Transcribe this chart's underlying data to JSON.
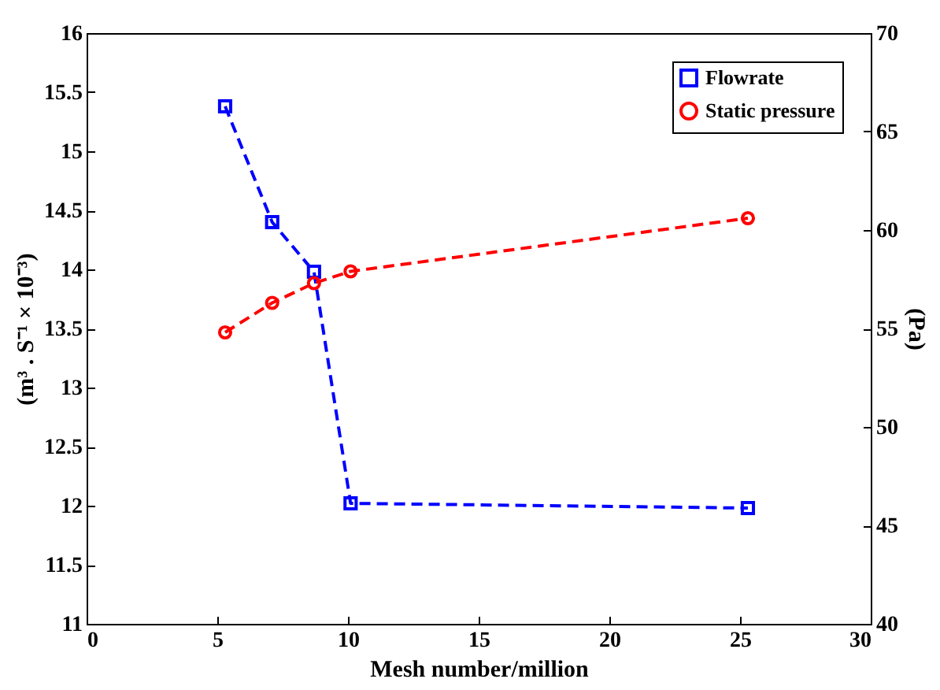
{
  "chart_data": {
    "type": "line",
    "xlabel": "Mesh number/million",
    "ylabel": "(m³ . S⁻¹ × 10⁻³)",
    "y2label": "(Pa)",
    "xlim": [
      0,
      30
    ],
    "xticks": [
      0,
      5,
      10,
      15,
      20,
      25,
      30
    ],
    "ylim": [
      11,
      16
    ],
    "yticks": [
      11,
      11.5,
      12,
      12.5,
      13,
      13.5,
      14,
      14.5,
      15,
      15.5,
      16
    ],
    "y2lim": [
      40,
      70
    ],
    "y2ticks": [
      40,
      45,
      50,
      55,
      60,
      65,
      70
    ],
    "x": [
      5.3,
      7.1,
      8.7,
      10.1,
      25.3
    ],
    "series": [
      {
        "name": "Flowrate",
        "color": "#0000ff",
        "marker": "square",
        "values": [
          15.38,
          14.4,
          13.98,
          12.02,
          11.98
        ]
      },
      {
        "name": "Static pressure",
        "color": "#ff0000",
        "marker": "circle",
        "axis": "y2",
        "values": [
          54.8,
          56.3,
          57.3,
          57.9,
          60.6
        ]
      }
    ],
    "line_style": "dashed",
    "grid": false,
    "legend": "top right"
  }
}
